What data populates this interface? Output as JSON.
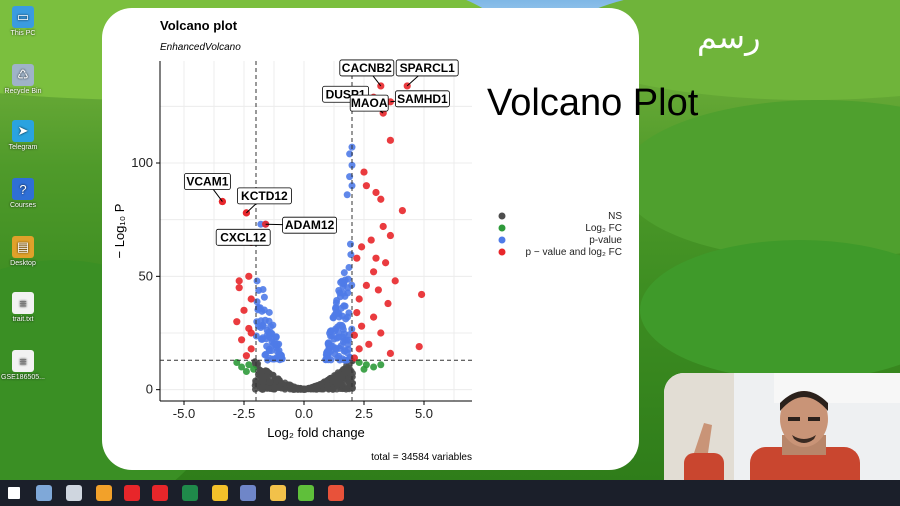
{
  "desktop": {
    "icons": [
      {
        "label": "This PC",
        "color": "#3a9be0",
        "glyph": "▭"
      },
      {
        "label": "Recycle Bin",
        "color": "#9fb3c8",
        "glyph": "♺"
      },
      {
        "label": "Telegram",
        "color": "#2aa3e0",
        "glyph": "➤"
      },
      {
        "label": "Courses",
        "color": "#2f6fd6",
        "glyph": "?"
      },
      {
        "label": "Desktop",
        "color": "#e0a12a",
        "glyph": "▤"
      },
      {
        "label": "trait.txt",
        "color": "#f2f2f2",
        "glyph": "≡"
      },
      {
        "label": "GSE186505...",
        "color": "#f2f2f2",
        "glyph": "≡"
      }
    ]
  },
  "overlay": {
    "title": "Volcano Plot",
    "arabic": "رسم"
  },
  "chart_data": {
    "type": "scatter",
    "title": "Volcano plot",
    "subtitle": "EnhancedVolcano",
    "xlabel": "Log₂ fold change",
    "ylabel": "− Log₁₀ P",
    "caption": "total = 34584 variables",
    "xlim": [
      -6,
      7
    ],
    "ylim": [
      -5,
      145
    ],
    "xticks": [
      -5.0,
      -2.5,
      0.0,
      2.5,
      5.0
    ],
    "yticks": [
      0,
      50,
      100
    ],
    "grid": true,
    "cutoffs": {
      "log2fc": [
        -2,
        2
      ],
      "neg_log10_p": 13
    },
    "legend": {
      "position": "right",
      "entries": [
        {
          "label": "NS",
          "color": "#4d4d4d"
        },
        {
          "label": "Log₂ FC",
          "color": "#2e9a3a"
        },
        {
          "label": "p-value",
          "color": "#4f7be8"
        },
        {
          "label": "p − value and log₂ FC",
          "color": "#e8262a"
        }
      ]
    },
    "labeled_points": [
      {
        "label": "CACNB2",
        "x": 3.2,
        "y": 134
      },
      {
        "label": "SPARCL1",
        "x": 4.3,
        "y": 134
      },
      {
        "label": "DUSP1",
        "x": 2.9,
        "y": 129
      },
      {
        "label": "SAMHD1",
        "x": 3.6,
        "y": 127
      },
      {
        "label": "MAOA",
        "x": 3.3,
        "y": 122
      },
      {
        "label": "VCAM1",
        "x": -3.4,
        "y": 83
      },
      {
        "label": "KCTD12",
        "x": -2.4,
        "y": 78
      },
      {
        "label": "ADAM12",
        "x": -1.6,
        "y": 73
      },
      {
        "label": "CXCL12",
        "x": -2.2,
        "y": 65
      }
    ],
    "red_points": [
      [
        3.6,
        110
      ],
      [
        2.5,
        96
      ],
      [
        3.0,
        87
      ],
      [
        2.6,
        90
      ],
      [
        3.2,
        84
      ],
      [
        4.1,
        79
      ],
      [
        3.3,
        72
      ],
      [
        3.6,
        68
      ],
      [
        2.8,
        66
      ],
      [
        2.4,
        63
      ],
      [
        3.0,
        58
      ],
      [
        3.4,
        56
      ],
      [
        2.2,
        58
      ],
      [
        2.9,
        52
      ],
      [
        3.8,
        48
      ],
      [
        4.9,
        42
      ],
      [
        2.6,
        46
      ],
      [
        3.1,
        44
      ],
      [
        2.3,
        40
      ],
      [
        3.5,
        38
      ],
      [
        2.2,
        34
      ],
      [
        2.9,
        32
      ],
      [
        2.4,
        28
      ],
      [
        3.2,
        25
      ],
      [
        2.1,
        24
      ],
      [
        2.7,
        20
      ],
      [
        4.8,
        19
      ],
      [
        2.3,
        18
      ],
      [
        3.6,
        16
      ],
      [
        2.1,
        14
      ],
      [
        -3.4,
        83
      ],
      [
        -2.4,
        78
      ],
      [
        -2.2,
        65
      ],
      [
        -2.3,
        50
      ],
      [
        -2.7,
        45
      ],
      [
        -2.2,
        40
      ],
      [
        -2.5,
        35
      ],
      [
        -2.8,
        30
      ],
      [
        -2.3,
        27
      ],
      [
        -2.6,
        22
      ],
      [
        -2.2,
        18
      ],
      [
        -2.4,
        15
      ],
      [
        -2.7,
        48
      ],
      [
        -2.2,
        25
      ]
    ],
    "blue_points": [
      [
        2.0,
        107
      ],
      [
        1.9,
        104
      ],
      [
        2.0,
        99
      ],
      [
        1.9,
        94
      ],
      [
        2.0,
        90
      ],
      [
        1.8,
        86
      ],
      [
        -1.6,
        73
      ],
      [
        -1.8,
        73
      ]
    ],
    "green_points": [
      [
        2.3,
        12
      ],
      [
        2.6,
        11
      ],
      [
        2.9,
        10
      ],
      [
        3.2,
        11
      ],
      [
        2.5,
        9
      ],
      [
        -2.3,
        11
      ],
      [
        -2.6,
        10
      ],
      [
        -2.1,
        9
      ],
      [
        -2.8,
        12
      ],
      [
        -2.4,
        8
      ]
    ]
  },
  "taskbar": {
    "icons": [
      {
        "name": "start-icon",
        "color": "#ffffff"
      },
      {
        "name": "file-icon",
        "color": "#7fa8d8"
      },
      {
        "name": "network-icon",
        "color": "#cfd6df"
      },
      {
        "name": "search-icon",
        "color": "#f2a12a"
      },
      {
        "name": "opera-icon",
        "color": "#e8262a"
      },
      {
        "name": "app-p-icon",
        "color": "#e8262a"
      },
      {
        "name": "excel-icon",
        "color": "#1f8a4a"
      },
      {
        "name": "chrome-icon",
        "color": "#f2c12a"
      },
      {
        "name": "r-icon",
        "color": "#6f86c8"
      },
      {
        "name": "folder-icon",
        "color": "#f2c14a"
      },
      {
        "name": "camtasia-icon",
        "color": "#5fbf3a"
      },
      {
        "name": "record-icon",
        "color": "#e8523a"
      }
    ]
  }
}
